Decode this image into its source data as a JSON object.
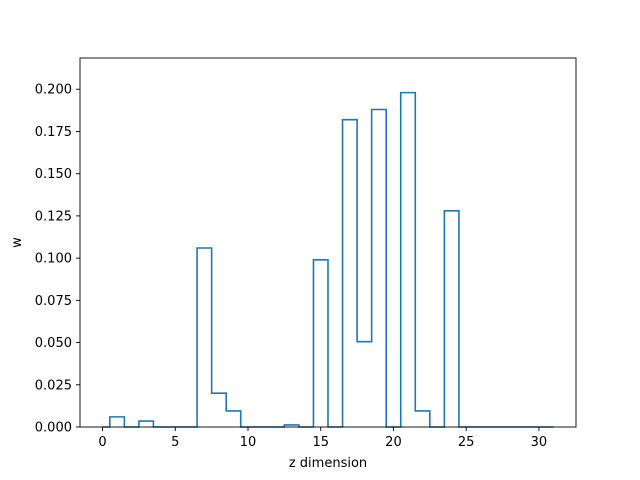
{
  "chart_data": {
    "type": "step",
    "title": "",
    "xlabel": "z dimension",
    "ylabel": "w",
    "xlim": [
      -1.55,
      32.55
    ],
    "ylim": [
      0,
      0.2185
    ],
    "xticks": [
      0,
      5,
      10,
      15,
      20,
      25,
      30
    ],
    "xtick_labels": [
      "0",
      "5",
      "10",
      "15",
      "20",
      "25",
      "30"
    ],
    "yticks": [
      0.0,
      0.025,
      0.05,
      0.075,
      0.1,
      0.125,
      0.15,
      0.175,
      0.2
    ],
    "ytick_labels": [
      "0.000",
      "0.025",
      "0.050",
      "0.075",
      "0.100",
      "0.125",
      "0.150",
      "0.175",
      "0.200"
    ],
    "grid": false,
    "x": [
      0,
      1,
      2,
      3,
      4,
      5,
      6,
      7,
      8,
      9,
      10,
      11,
      12,
      13,
      14,
      15,
      16,
      17,
      18,
      19,
      20,
      21,
      22,
      23,
      24,
      25,
      26,
      27,
      28,
      29,
      30,
      31
    ],
    "values": [
      0.0,
      0.006,
      0.0,
      0.0035,
      0.0,
      0.0,
      0.0,
      0.106,
      0.02,
      0.0095,
      0.0,
      0.0,
      0.0,
      0.0012,
      0.0,
      0.099,
      0.0,
      0.182,
      0.0505,
      0.188,
      0.0,
      0.198,
      0.0095,
      0.0,
      0.128,
      0.0,
      0.0,
      0.0,
      0.0,
      0.0,
      0.0,
      0.0
    ],
    "step_where": "mid",
    "line_color": "#1f77b4"
  }
}
